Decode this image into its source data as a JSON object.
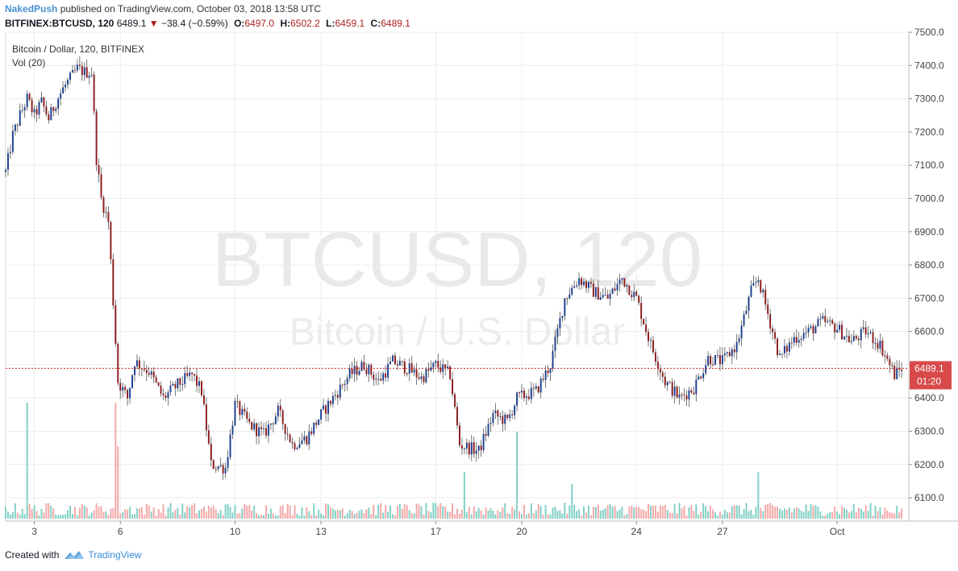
{
  "header": {
    "publisher": "NakedPush",
    "published_text": "published on TradingView.com, October 03, 2018 13:58 UTC",
    "symbol": "BITFINEX:BTCUSD, 120",
    "last": "6489.1",
    "change": "−38.4 (−0.59%)",
    "o_label": "O:",
    "o": "6497.0",
    "h_label": "H:",
    "h": "6502.2",
    "l_label": "L:",
    "l": "6459.1",
    "c_label": "C:",
    "c": "6489.1"
  },
  "legend": {
    "title": "Bitcoin / Dollar, 120, BITFINEX",
    "volume": "Vol (20)"
  },
  "watermark": {
    "line1": "BTCUSD, 120",
    "line2": "Bitcoin / U.S. Dollar"
  },
  "price_tag": {
    "price": "6489.1",
    "countdown": "01:20"
  },
  "footer": {
    "created_with": "Created with",
    "brand": "TradingView"
  },
  "colors": {
    "up": "#1a3d8f",
    "down": "#8b1a1a",
    "vol_up": "#7fcfc4",
    "vol_down": "#f4a6a6",
    "last_line": "#c62828",
    "grid": "#ececec"
  },
  "chart_data": {
    "type": "candlestick",
    "title": "Bitcoin / Dollar, 120, BITFINEX",
    "x_ticks": [
      "3",
      "6",
      "10",
      "13",
      "17",
      "20",
      "24",
      "27",
      "Oct"
    ],
    "y_ticks": [
      6100,
      6200,
      6300,
      6400,
      6500,
      6600,
      6700,
      6800,
      6900,
      7000,
      7100,
      7200,
      7300,
      7400,
      7500
    ],
    "ylim": [
      6030,
      7500
    ],
    "last_price": 6489.1,
    "path": [
      [
        "Sep 2 00:00",
        7080
      ],
      [
        "Sep 2 06:00",
        7190
      ],
      [
        "Sep 2 12:00",
        7250
      ],
      [
        "Sep 2 18:00",
        7300
      ],
      [
        "Sep 3 00:00",
        7250
      ],
      [
        "Sep 3 06:00",
        7290
      ],
      [
        "Sep 3 12:00",
        7240
      ],
      [
        "Sep 3 18:00",
        7290
      ],
      [
        "Sep 4 00:00",
        7330
      ],
      [
        "Sep 4 06:00",
        7360
      ],
      [
        "Sep 4 12:00",
        7390
      ],
      [
        "Sep 4 18:00",
        7380
      ],
      [
        "Sep 5 00:00",
        7380
      ],
      [
        "Sep 5 04:00",
        7120
      ],
      [
        "Sep 5 08:00",
        7000
      ],
      [
        "Sep 5 14:00",
        6930
      ],
      [
        "Sep 5 18:00",
        6690
      ],
      [
        "Sep 5 22:00",
        6450
      ],
      [
        "Sep 6 06:00",
        6400
      ],
      [
        "Sep 6 12:00",
        6510
      ],
      [
        "Sep 7 00:00",
        6480
      ],
      [
        "Sep 7 12:00",
        6400
      ],
      [
        "Sep 8 00:00",
        6440
      ],
      [
        "Sep 8 12:00",
        6470
      ],
      [
        "Sep 8 20:00",
        6420
      ],
      [
        "Sep 9 04:00",
        6200
      ],
      [
        "Sep 9 16:00",
        6190
      ],
      [
        "Sep 10 00:00",
        6380
      ],
      [
        "Sep 10 12:00",
        6320
      ],
      [
        "Sep 11 00:00",
        6290
      ],
      [
        "Sep 11 12:00",
        6360
      ],
      [
        "Sep 12 00:00",
        6260
      ],
      [
        "Sep 12 12:00",
        6280
      ],
      [
        "Sep 13 00:00",
        6350
      ],
      [
        "Sep 13 12:00",
        6410
      ],
      [
        "Sep 14 00:00",
        6470
      ],
      [
        "Sep 14 12:00",
        6500
      ],
      [
        "Sep 15 00:00",
        6450
      ],
      [
        "Sep 15 12:00",
        6510
      ],
      [
        "Sep 16 00:00",
        6490
      ],
      [
        "Sep 16 12:00",
        6460
      ],
      [
        "Sep 17 00:00",
        6500
      ],
      [
        "Sep 17 12:00",
        6470
      ],
      [
        "Sep 17 20:00",
        6260
      ],
      [
        "Sep 18 12:00",
        6240
      ],
      [
        "Sep 19 00:00",
        6350
      ],
      [
        "Sep 19 12:00",
        6330
      ],
      [
        "Sep 19 20:00",
        6400
      ],
      [
        "Sep 20 12:00",
        6420
      ],
      [
        "Sep 21 00:00",
        6500
      ],
      [
        "Sep 21 12:00",
        6700
      ],
      [
        "Sep 22 00:00",
        6760
      ],
      [
        "Sep 22 12:00",
        6720
      ],
      [
        "Sep 23 00:00",
        6700
      ],
      [
        "Sep 23 12:00",
        6760
      ],
      [
        "Sep 24 00:00",
        6700
      ],
      [
        "Sep 24 12:00",
        6560
      ],
      [
        "Sep 25 00:00",
        6450
      ],
      [
        "Sep 25 12:00",
        6400
      ],
      [
        "Sep 26 00:00",
        6430
      ],
      [
        "Sep 26 12:00",
        6520
      ],
      [
        "Sep 27 00:00",
        6510
      ],
      [
        "Sep 27 12:00",
        6560
      ],
      [
        "Sep 28 00:00",
        6720
      ],
      [
        "Sep 28 06:00",
        6760
      ],
      [
        "Sep 28 12:00",
        6680
      ],
      [
        "Sep 29 00:00",
        6520
      ],
      [
        "Sep 29 12:00",
        6580
      ],
      [
        "Sep 30 00:00",
        6600
      ],
      [
        "Sep 30 12:00",
        6630
      ],
      [
        "Oct 1 00:00",
        6610
      ],
      [
        "Oct 1 12:00",
        6570
      ],
      [
        "Oct 2 00:00",
        6600
      ],
      [
        "Oct 2 12:00",
        6560
      ],
      [
        "Oct 3 00:00",
        6470
      ],
      [
        "Oct 3 06:00",
        6489
      ]
    ],
    "volume_spikes": [
      [
        "Sep 2 18:00",
        8.0
      ],
      [
        "Sep 5 20:00",
        8.0
      ],
      [
        "Sep 5 22:00",
        5.0
      ],
      [
        "Sep 19 20:00",
        6.0
      ],
      [
        "Sep 18 00:00",
        3.2
      ],
      [
        "Sep 28 06:00",
        3.2
      ],
      [
        "Sep 21 18:00",
        2.4
      ]
    ]
  }
}
